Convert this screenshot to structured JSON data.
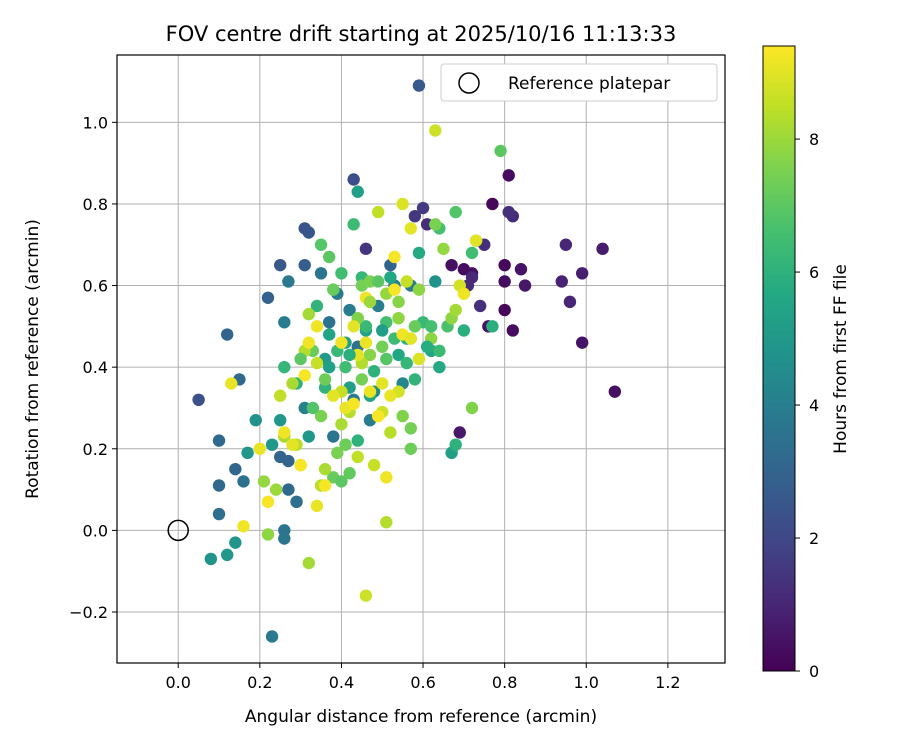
{
  "chart_data": {
    "type": "scatter",
    "title": "FOV centre drift starting at 2025/10/16 11:13:33",
    "xlabel": "Angular distance from reference (arcmin)",
    "ylabel": "Rotation from reference (arcmin)",
    "xlim": [
      -0.15,
      1.34
    ],
    "ylim": [
      -0.325,
      1.165
    ],
    "xticks": [
      0.0,
      0.2,
      0.4,
      0.6,
      0.8,
      1.0,
      1.2
    ],
    "xtick_labels": [
      "0.0",
      "0.2",
      "0.4",
      "0.6",
      "0.8",
      "1.0",
      "1.2"
    ],
    "yticks": [
      -0.2,
      0.0,
      0.2,
      0.4,
      0.6,
      0.8,
      1.0
    ],
    "ytick_labels": [
      "−0.2",
      "0.0",
      "0.2",
      "0.4",
      "0.6",
      "0.8",
      "1.0"
    ],
    "grid": true,
    "legend": {
      "location": "top-right",
      "entries": [
        "Reference platepar"
      ]
    },
    "reference_point": {
      "x": 0.0,
      "y": 0.0,
      "label": "Reference platepar"
    },
    "colorbar": {
      "label": "Hours from first FF file",
      "range": [
        0,
        9.4
      ],
      "ticks": [
        0,
        2,
        4,
        6,
        8
      ],
      "tick_labels": [
        "0",
        "2",
        "4",
        "6",
        "8"
      ],
      "colormap": "viridis"
    },
    "points": [
      [
        0.7,
        0.64,
        0.3
      ],
      [
        0.72,
        0.63,
        0.4
      ],
      [
        0.77,
        0.8,
        0.2
      ],
      [
        0.81,
        0.87,
        0.3
      ],
      [
        0.8,
        0.65,
        0.2
      ],
      [
        0.84,
        0.64,
        0.5
      ],
      [
        0.8,
        0.61,
        0.3
      ],
      [
        0.85,
        0.6,
        0.6
      ],
      [
        0.8,
        0.54,
        0.2
      ],
      [
        0.76,
        0.5,
        0.5
      ],
      [
        0.82,
        0.49,
        0.3
      ],
      [
        0.67,
        0.65,
        0.4
      ],
      [
        0.69,
        0.24,
        0.6
      ],
      [
        1.07,
        0.34,
        0.4
      ],
      [
        0.99,
        0.46,
        0.5
      ],
      [
        1.04,
        0.69,
        0.7
      ],
      [
        0.99,
        0.63,
        0.8
      ],
      [
        0.95,
        0.7,
        1.0
      ],
      [
        0.94,
        0.61,
        0.9
      ],
      [
        0.96,
        0.56,
        1.0
      ],
      [
        0.82,
        0.77,
        1.2
      ],
      [
        0.81,
        0.78,
        1.3
      ],
      [
        0.75,
        0.7,
        1.3
      ],
      [
        0.74,
        0.55,
        1.3
      ],
      [
        0.71,
        0.6,
        1.2
      ],
      [
        0.72,
        0.62,
        1.1
      ],
      [
        0.46,
        0.69,
        1.4
      ],
      [
        0.6,
        0.79,
        1.6
      ],
      [
        0.61,
        0.75,
        1.2
      ],
      [
        0.58,
        0.77,
        1.5
      ],
      [
        0.43,
        0.86,
        2.2
      ],
      [
        0.59,
        1.09,
        2.6
      ],
      [
        0.31,
        0.74,
        2.4
      ],
      [
        0.32,
        0.73,
        2.5
      ],
      [
        0.25,
        0.65,
        2.6
      ],
      [
        0.31,
        0.65,
        2.8
      ],
      [
        0.22,
        0.57,
        2.9
      ],
      [
        0.05,
        0.32,
        2.3
      ],
      [
        0.12,
        0.48,
        3.0
      ],
      [
        0.15,
        0.37,
        3.2
      ],
      [
        0.1,
        0.22,
        3.2
      ],
      [
        0.14,
        0.15,
        3.1
      ],
      [
        0.1,
        0.11,
        3.2
      ],
      [
        0.1,
        0.04,
        3.4
      ],
      [
        0.16,
        0.12,
        3.5
      ],
      [
        0.25,
        0.18,
        3.1
      ],
      [
        0.27,
        0.17,
        3.0
      ],
      [
        0.27,
        0.1,
        3.2
      ],
      [
        0.29,
        0.07,
        3.4
      ],
      [
        0.26,
        0.0,
        3.6
      ],
      [
        0.26,
        -0.02,
        3.7
      ],
      [
        0.23,
        -0.26,
        3.8
      ],
      [
        0.27,
        0.61,
        3.8
      ],
      [
        0.26,
        0.51,
        3.9
      ],
      [
        0.35,
        0.63,
        3.7
      ],
      [
        0.37,
        0.51,
        3.6
      ],
      [
        0.39,
        0.58,
        3.9
      ],
      [
        0.38,
        0.23,
        3.7
      ],
      [
        0.31,
        0.3,
        4.1
      ],
      [
        0.42,
        0.54,
        3.9
      ],
      [
        0.44,
        0.45,
        3.5
      ],
      [
        0.43,
        0.32,
        3.8
      ],
      [
        0.47,
        0.27,
        3.9
      ],
      [
        0.52,
        0.65,
        3.0
      ],
      [
        0.57,
        0.6,
        3.8
      ],
      [
        0.53,
        0.6,
        4.1
      ],
      [
        0.55,
        0.36,
        4.3
      ],
      [
        0.49,
        0.55,
        4.0
      ],
      [
        0.48,
        0.34,
        4.4
      ],
      [
        0.63,
        0.61,
        4.7
      ],
      [
        0.19,
        0.27,
        4.8
      ],
      [
        0.25,
        0.27,
        4.9
      ],
      [
        0.23,
        0.21,
        5.0
      ],
      [
        0.17,
        0.19,
        4.9
      ],
      [
        0.14,
        -0.03,
        4.9
      ],
      [
        0.12,
        -0.06,
        5.0
      ],
      [
        0.08,
        -0.07,
        4.8
      ],
      [
        0.32,
        0.23,
        4.9
      ],
      [
        0.36,
        0.42,
        5.1
      ],
      [
        0.37,
        0.4,
        5.3
      ],
      [
        0.42,
        0.35,
        5.2
      ],
      [
        0.44,
        0.83,
        5.3
      ],
      [
        0.46,
        0.49,
        5.4
      ],
      [
        0.41,
        0.46,
        5.2
      ],
      [
        0.47,
        0.33,
        5.5
      ],
      [
        0.52,
        0.62,
        5.6
      ],
      [
        0.59,
        0.68,
        5.7
      ],
      [
        0.54,
        0.43,
        5.6
      ],
      [
        0.56,
        0.47,
        5.8
      ],
      [
        0.62,
        0.44,
        5.5
      ],
      [
        0.64,
        0.4,
        5.7
      ],
      [
        0.67,
        0.19,
        5.3
      ],
      [
        0.68,
        0.21,
        6.0
      ],
      [
        0.77,
        0.5,
        5.9
      ],
      [
        0.7,
        0.49,
        5.9
      ],
      [
        0.26,
        0.4,
        6.2
      ],
      [
        0.29,
        0.36,
        6.0
      ],
      [
        0.34,
        0.55,
        6.1
      ],
      [
        0.36,
        0.35,
        6.1
      ],
      [
        0.39,
        0.44,
        6.3
      ],
      [
        0.43,
        0.75,
        6.4
      ],
      [
        0.45,
        0.62,
        6.2
      ],
      [
        0.41,
        0.4,
        6.5
      ],
      [
        0.46,
        0.5,
        6.3
      ],
      [
        0.48,
        0.39,
        6.0
      ],
      [
        0.51,
        0.51,
        6.6
      ],
      [
        0.53,
        0.47,
        6.4
      ],
      [
        0.56,
        0.41,
        6.2
      ],
      [
        0.58,
        0.37,
        6.1
      ],
      [
        0.6,
        0.51,
        6.3
      ],
      [
        0.64,
        0.44,
        6.4
      ],
      [
        0.64,
        0.74,
        6.6
      ],
      [
        0.66,
        0.5,
        6.7
      ],
      [
        0.68,
        0.78,
        6.8
      ],
      [
        0.72,
        0.68,
        6.5
      ],
      [
        0.73,
        0.71,
        6.6
      ],
      [
        0.79,
        0.93,
        7.0
      ],
      [
        0.33,
        0.44,
        7.2
      ],
      [
        0.35,
        0.7,
        6.9
      ],
      [
        0.37,
        0.67,
        7.0
      ],
      [
        0.38,
        0.59,
        7.2
      ],
      [
        0.35,
        0.28,
        7.5
      ],
      [
        0.36,
        0.37,
        7.3
      ],
      [
        0.38,
        0.13,
        7.2
      ],
      [
        0.39,
        0.19,
        7.5
      ],
      [
        0.4,
        0.12,
        7.0
      ],
      [
        0.42,
        0.14,
        7.1
      ],
      [
        0.41,
        0.21,
        7.3
      ],
      [
        0.44,
        0.52,
        7.6
      ],
      [
        0.45,
        0.6,
        7.4
      ],
      [
        0.47,
        0.43,
        7.7
      ],
      [
        0.47,
        0.61,
        7.5
      ],
      [
        0.5,
        0.45,
        7.4
      ],
      [
        0.51,
        0.58,
        7.9
      ],
      [
        0.54,
        0.56,
        7.7
      ],
      [
        0.55,
        0.28,
        7.6
      ],
      [
        0.57,
        0.2,
        7.3
      ],
      [
        0.57,
        0.25,
        7.4
      ],
      [
        0.59,
        0.59,
        7.8
      ],
      [
        0.62,
        0.47,
        7.8
      ],
      [
        0.63,
        0.75,
        7.5
      ],
      [
        0.65,
        0.69,
        7.9
      ],
      [
        0.67,
        0.52,
        7.8
      ],
      [
        0.68,
        0.54,
        8.1
      ],
      [
        0.72,
        0.3,
        7.6
      ],
      [
        0.22,
        -0.01,
        7.8
      ],
      [
        0.21,
        0.12,
        7.9
      ],
      [
        0.24,
        0.1,
        8.0
      ],
      [
        0.26,
        0.23,
        8.2
      ],
      [
        0.3,
        0.16,
        8.3
      ],
      [
        0.32,
        -0.08,
        8.1
      ],
      [
        0.25,
        0.33,
        8.5
      ],
      [
        0.28,
        0.36,
        8.2
      ],
      [
        0.29,
        0.21,
        8.4
      ],
      [
        0.31,
        0.44,
        8.3
      ],
      [
        0.32,
        0.53,
        8.1
      ],
      [
        0.34,
        0.41,
        8.6
      ],
      [
        0.35,
        0.11,
        8.4
      ],
      [
        0.36,
        0.15,
        8.2
      ],
      [
        0.4,
        0.34,
        8.6
      ],
      [
        0.42,
        0.29,
        8.4
      ],
      [
        0.44,
        0.18,
        8.5
      ],
      [
        0.45,
        0.41,
        8.3
      ],
      [
        0.46,
        -0.16,
        8.7
      ],
      [
        0.48,
        0.16,
        8.6
      ],
      [
        0.49,
        0.78,
        8.5
      ],
      [
        0.5,
        0.29,
        8.7
      ],
      [
        0.51,
        0.02,
        8.3
      ],
      [
        0.52,
        0.24,
        8.4
      ],
      [
        0.54,
        0.34,
        8.8
      ],
      [
        0.55,
        0.8,
        8.9
      ],
      [
        0.56,
        0.61,
        8.6
      ],
      [
        0.57,
        0.74,
        9.0
      ],
      [
        0.59,
        0.42,
        8.9
      ],
      [
        0.63,
        0.98,
        8.7
      ],
      [
        0.69,
        0.6,
        8.8
      ],
      [
        0.7,
        0.58,
        9.2
      ],
      [
        0.73,
        0.71,
        9.0
      ],
      [
        0.13,
        0.36,
        9.1
      ],
      [
        0.16,
        0.01,
        9.2
      ],
      [
        0.2,
        0.2,
        9.1
      ],
      [
        0.22,
        0.07,
        9.3
      ],
      [
        0.26,
        0.24,
        9.2
      ],
      [
        0.28,
        0.21,
        9.0
      ],
      [
        0.3,
        0.16,
        9.3
      ],
      [
        0.32,
        0.46,
        9.2
      ],
      [
        0.34,
        0.06,
        9.1
      ],
      [
        0.36,
        0.11,
        9.3
      ],
      [
        0.38,
        0.33,
        9.0
      ],
      [
        0.4,
        0.46,
        9.2
      ],
      [
        0.41,
        0.3,
        9.1
      ],
      [
        0.43,
        0.31,
        9.3
      ],
      [
        0.44,
        0.43,
        9.0
      ],
      [
        0.46,
        0.57,
        9.2
      ],
      [
        0.47,
        0.34,
        9.1
      ],
      [
        0.49,
        0.28,
        9.3
      ],
      [
        0.5,
        0.36,
        9.0
      ],
      [
        0.51,
        0.13,
        9.2
      ],
      [
        0.52,
        0.33,
        9.1
      ],
      [
        0.53,
        0.59,
        9.3
      ],
      [
        0.55,
        0.48,
        9.2
      ],
      [
        0.57,
        0.47,
        9.0
      ],
      [
        0.53,
        0.67,
        9.3
      ],
      [
        0.46,
        0.46,
        9.1
      ],
      [
        0.34,
        0.5,
        9.2
      ],
      [
        0.31,
        0.38,
        9.3
      ],
      [
        0.43,
        0.5,
        9.0
      ],
      [
        0.44,
        0.22,
        6.0
      ],
      [
        0.4,
        0.63,
        6.5
      ],
      [
        0.49,
        0.61,
        7.0
      ],
      [
        0.58,
        0.5,
        7.2
      ],
      [
        0.61,
        0.45,
        5.8
      ],
      [
        0.33,
        0.3,
        6.8
      ],
      [
        0.42,
        0.43,
        5.9
      ],
      [
        0.51,
        0.42,
        6.9
      ],
      [
        0.37,
        0.48,
        5.5
      ],
      [
        0.54,
        0.52,
        7.8
      ],
      [
        0.47,
        0.56,
        8.0
      ],
      [
        0.4,
        0.26,
        8.2
      ],
      [
        0.3,
        0.42,
        7.0
      ],
      [
        0.62,
        0.5,
        6.6
      ],
      [
        0.5,
        0.49,
        5.2
      ],
      [
        0.45,
        0.37,
        7.4
      ]
    ]
  }
}
